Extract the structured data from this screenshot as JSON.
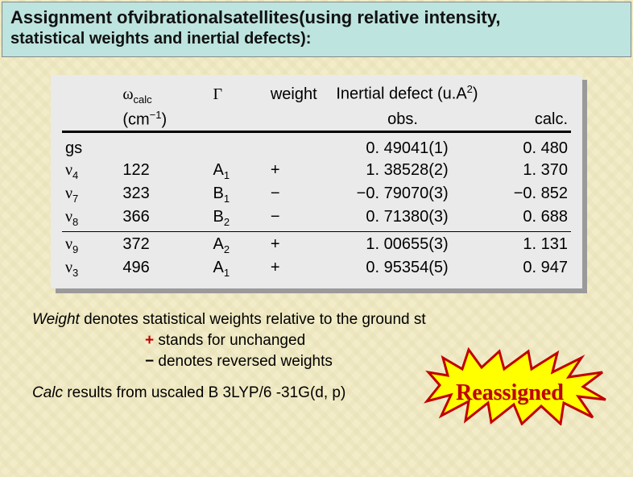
{
  "title": {
    "prefix": "Assignment of",
    "mid1": "vibrational",
    "mid2": "satellites",
    "suffix_line1": "(using relative intensity,",
    "line2": "statistical weights and inertial defects):"
  },
  "table": {
    "headers": {
      "wcalc_sym": "ω",
      "wcalc_sub": "calc",
      "wcalc_unit_open": "(cm",
      "wcalc_unit_exp": "−1",
      "wcalc_unit_close": ")",
      "gamma": "Γ",
      "weight": "weight",
      "inertial": "Inertial defect (u.A",
      "inertial_sup": "2",
      "inertial_close": ")",
      "obs": "obs.",
      "calc": "calc."
    },
    "rows": [
      {
        "mode_sym": "gs",
        "mode_sub": "",
        "wcalc": "",
        "gamma": "",
        "gamma_sub": "",
        "weight": "",
        "obs": "0. 49041(1)",
        "calc": "0. 480"
      },
      {
        "mode_sym": "ν",
        "mode_sub": "4",
        "wcalc": "122",
        "gamma": "A",
        "gamma_sub": "1",
        "weight": "+",
        "obs": "1. 38528(2)",
        "calc": "1. 370"
      },
      {
        "mode_sym": "ν",
        "mode_sub": "7",
        "wcalc": "323",
        "gamma": "B",
        "gamma_sub": "1",
        "weight": "−",
        "obs": "−0. 79070(3)",
        "calc": "−0. 852"
      },
      {
        "mode_sym": "ν",
        "mode_sub": "8",
        "wcalc": "366",
        "gamma": "B",
        "gamma_sub": "2",
        "weight": "−",
        "obs": "0. 71380(3)",
        "calc": "0. 688"
      },
      {
        "mode_sym": "ν",
        "mode_sub": "9",
        "wcalc": "372",
        "gamma": "A",
        "gamma_sub": "2",
        "weight": "+",
        "obs": "1. 00655(3)",
        "calc": "1. 131"
      },
      {
        "mode_sym": "ν",
        "mode_sub": "3",
        "wcalc": "496",
        "gamma": "A",
        "gamma_sub": "1",
        "weight": "+",
        "obs": "0. 95354(5)",
        "calc": "0. 947"
      }
    ],
    "group_break_after_index": 3
  },
  "notes": {
    "line1_a": "Weight",
    "line1_b": "  denotes statistical weights relative to the ground st",
    "line2_plus": "+",
    "line2_rest": " stands for unchanged",
    "line3_minus": "−",
    "line3_rest": " denotes reversed weights",
    "line4_a": "Calc",
    "line4_b": " results from uscaled B 3LYP/6 -31G(d, p)"
  },
  "callout": {
    "text": "Reassigned",
    "fill": "#ffff00",
    "stroke": "#c00000",
    "stroke_width": 3
  },
  "colors": {
    "title_bg": "#bde4de",
    "table_bg": "#eaeaea",
    "shadow": "#9a9a9a",
    "page_bg": "#f2ecc8"
  }
}
